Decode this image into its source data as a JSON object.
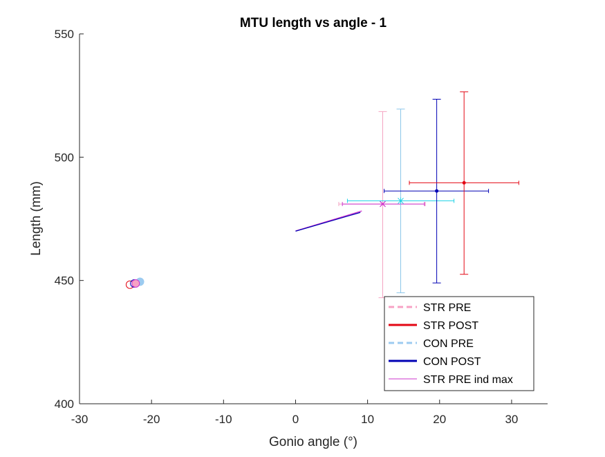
{
  "chart_data": {
    "type": "line",
    "title": "MTU length vs angle - 1",
    "xlabel": "Gonio angle (°)",
    "ylabel": "Length (mm)",
    "xlim": [
      -30,
      35
    ],
    "ylim": [
      400,
      550
    ],
    "xticks": [
      -30,
      -20,
      -10,
      0,
      10,
      20,
      30
    ],
    "xtick_labels": [
      "-30",
      "-20",
      "-10",
      "0",
      "10",
      "20",
      "30"
    ],
    "yticks": [
      400,
      450,
      500,
      550
    ],
    "ytick_labels": [
      "400",
      "450",
      "500",
      "550"
    ],
    "colors": {
      "str_pre": "#f7a1c4",
      "str_post": "#e30613",
      "con_pre": "#9ccbf0",
      "con_post": "#0000b4",
      "str_pre_ind_max": "#cc33cc",
      "cyan": "#22d3e6",
      "pink_errbar": "#f4a3c1",
      "light_errbar": "#8cc6ea"
    },
    "start_markers": [
      {
        "name": "con-pre-start",
        "x": -21.6,
        "y": 449.5,
        "color": "#9ccbf0",
        "fill": "#9ccbf0"
      },
      {
        "name": "str-post-start",
        "x": -23.0,
        "y": 448.3,
        "color": "#e30613",
        "fill": "none"
      },
      {
        "name": "con-post-start",
        "x": -22.4,
        "y": 448.8,
        "color": "#0000b4",
        "fill": "none"
      },
      {
        "name": "str-pre-start",
        "x": -22.2,
        "y": 448.8,
        "color": "#cc33cc",
        "fill": "#f7a1c4"
      }
    ],
    "lines": [
      {
        "name": "str-pre-ind-max-line",
        "color": "#cc33cc",
        "width": 1.3,
        "x": [
          0,
          9.2
        ],
        "y": [
          470.1,
          478.2
        ]
      },
      {
        "name": "con-post-line",
        "color": "#0000b4",
        "width": 1.3,
        "x": [
          0,
          9.0
        ],
        "y": [
          470.0,
          477.6
        ]
      }
    ],
    "errorbars": [
      {
        "name": "str-pre",
        "color": "#f4a3c1",
        "x": 12.1,
        "y": 481.0,
        "xerr": [
          6.0,
          18.0
        ],
        "yerr": [
          443.0,
          518.5
        ],
        "marker": "x",
        "marker_color": "#cc33cc"
      },
      {
        "name": "str-pre-ind-max",
        "color": "#cc33cc",
        "x": 12.1,
        "y": 481.0,
        "xerr": [
          6.5,
          17.9
        ],
        "yerr": null,
        "marker": "none",
        "marker_color": "#cc33cc"
      },
      {
        "name": "con-pre",
        "color": "#8cc6ea",
        "x": 14.6,
        "y": 482.3,
        "xerr": [
          7.2,
          22.0
        ],
        "yerr": [
          445.0,
          519.5
        ],
        "marker": "*",
        "marker_color": "#22d3e6",
        "hcolor": "#22d3e6"
      },
      {
        "name": "con-post",
        "color": "#0000b4",
        "x": 19.6,
        "y": 486.3,
        "xerr": [
          12.3,
          26.8
        ],
        "yerr": [
          449.0,
          523.5
        ],
        "marker": "dot",
        "marker_color": "#0000b4"
      },
      {
        "name": "str-post",
        "color": "#e30613",
        "x": 23.4,
        "y": 489.6,
        "xerr": [
          15.8,
          31.0
        ],
        "yerr": [
          452.5,
          526.5
        ],
        "marker": "dot",
        "marker_color": "#e30613"
      }
    ],
    "legend": {
      "placement": "lower-right",
      "entries": [
        {
          "label": "STR PRE",
          "color": "#f7a1c4",
          "style": "dashed",
          "width": 3
        },
        {
          "label": "STR POST",
          "color": "#e30613",
          "style": "solid",
          "width": 3
        },
        {
          "label": "CON PRE",
          "color": "#9ccbf0",
          "style": "dashed",
          "width": 3
        },
        {
          "label": "CON POST",
          "color": "#0000b4",
          "style": "solid",
          "width": 3
        },
        {
          "label": "STR PRE ind max",
          "color": "#cc33cc",
          "style": "solid",
          "width": 1
        }
      ]
    }
  }
}
